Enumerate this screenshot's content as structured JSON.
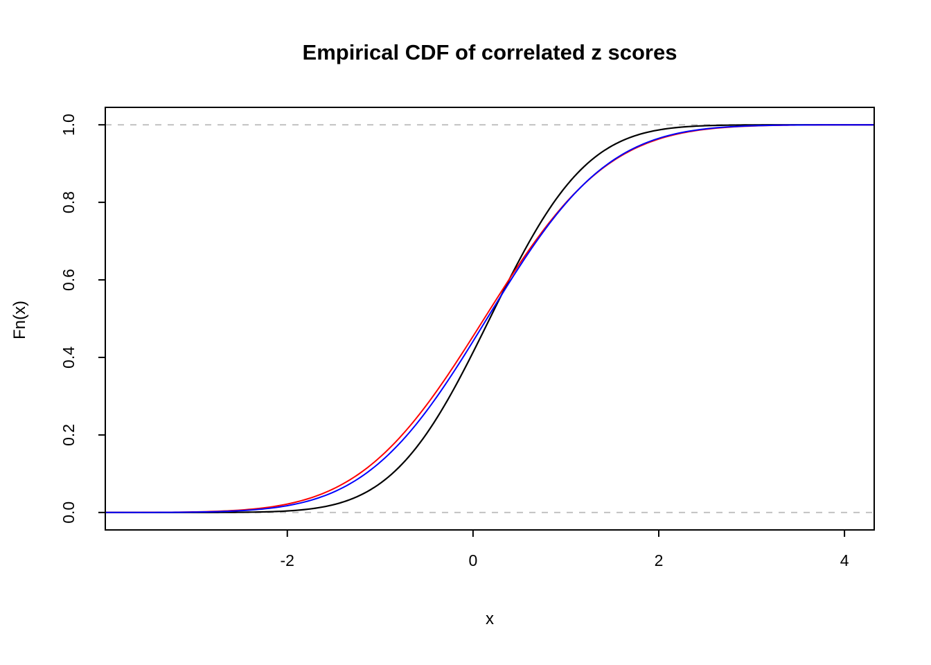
{
  "chart_data": {
    "type": "line",
    "title": "Empirical CDF of correlated z scores",
    "xlabel": "x",
    "ylabel": "Fn(x)",
    "xlim": [
      -3.96,
      4.32
    ],
    "ylim": [
      -0.045,
      1.045
    ],
    "grid": false,
    "legend": null,
    "x_ticks": {
      "values": [
        -2,
        0,
        2,
        4
      ],
      "labels": [
        "-2",
        "0",
        "2",
        "4"
      ]
    },
    "y_ticks": {
      "values": [
        0,
        0.2,
        0.4,
        0.6,
        0.8,
        1
      ],
      "labels": [
        "0.0",
        "0.2",
        "0.4",
        "0.6",
        "0.8",
        "1.0"
      ]
    },
    "reference_lines": [
      {
        "y": 0,
        "style": "dashed",
        "color": "#BEBEBE"
      },
      {
        "y": 1,
        "style": "dashed",
        "color": "#BEBEBE"
      }
    ],
    "series": [
      {
        "name": "empirical-cdf-black",
        "color": "#000000",
        "width": 2.2,
        "dist": "normal_cdf",
        "mean": 0.18,
        "sd": 0.82,
        "anchor_points": {
          "x": [
            -2,
            -1,
            0,
            1,
            2,
            3
          ],
          "y": [
            0.004,
            0.075,
            0.413,
            0.841,
            0.987,
            0.9997
          ]
        }
      },
      {
        "name": "theoretical-cdf-red",
        "color": "#FF0000",
        "width": 2.0,
        "dist": "normal_cdf",
        "mean": 0.12,
        "sd": 1.05,
        "anchor_points": {
          "x": [
            -2,
            -1,
            0,
            1,
            2,
            3
          ],
          "y": [
            0.022,
            0.143,
            0.455,
            0.799,
            0.963,
            0.997
          ]
        }
      },
      {
        "name": "theoretical-cdf-blue",
        "color": "#0000FF",
        "width": 2.0,
        "dist": "normal_cdf",
        "mean": 0.15,
        "sd": 1.02,
        "anchor_points": {
          "x": [
            -2,
            -1,
            0,
            1,
            2,
            3
          ],
          "y": [
            0.018,
            0.13,
            0.442,
            0.798,
            0.965,
            0.997
          ]
        }
      }
    ],
    "frame_color": "#000000",
    "background": "#FFFFFF"
  }
}
